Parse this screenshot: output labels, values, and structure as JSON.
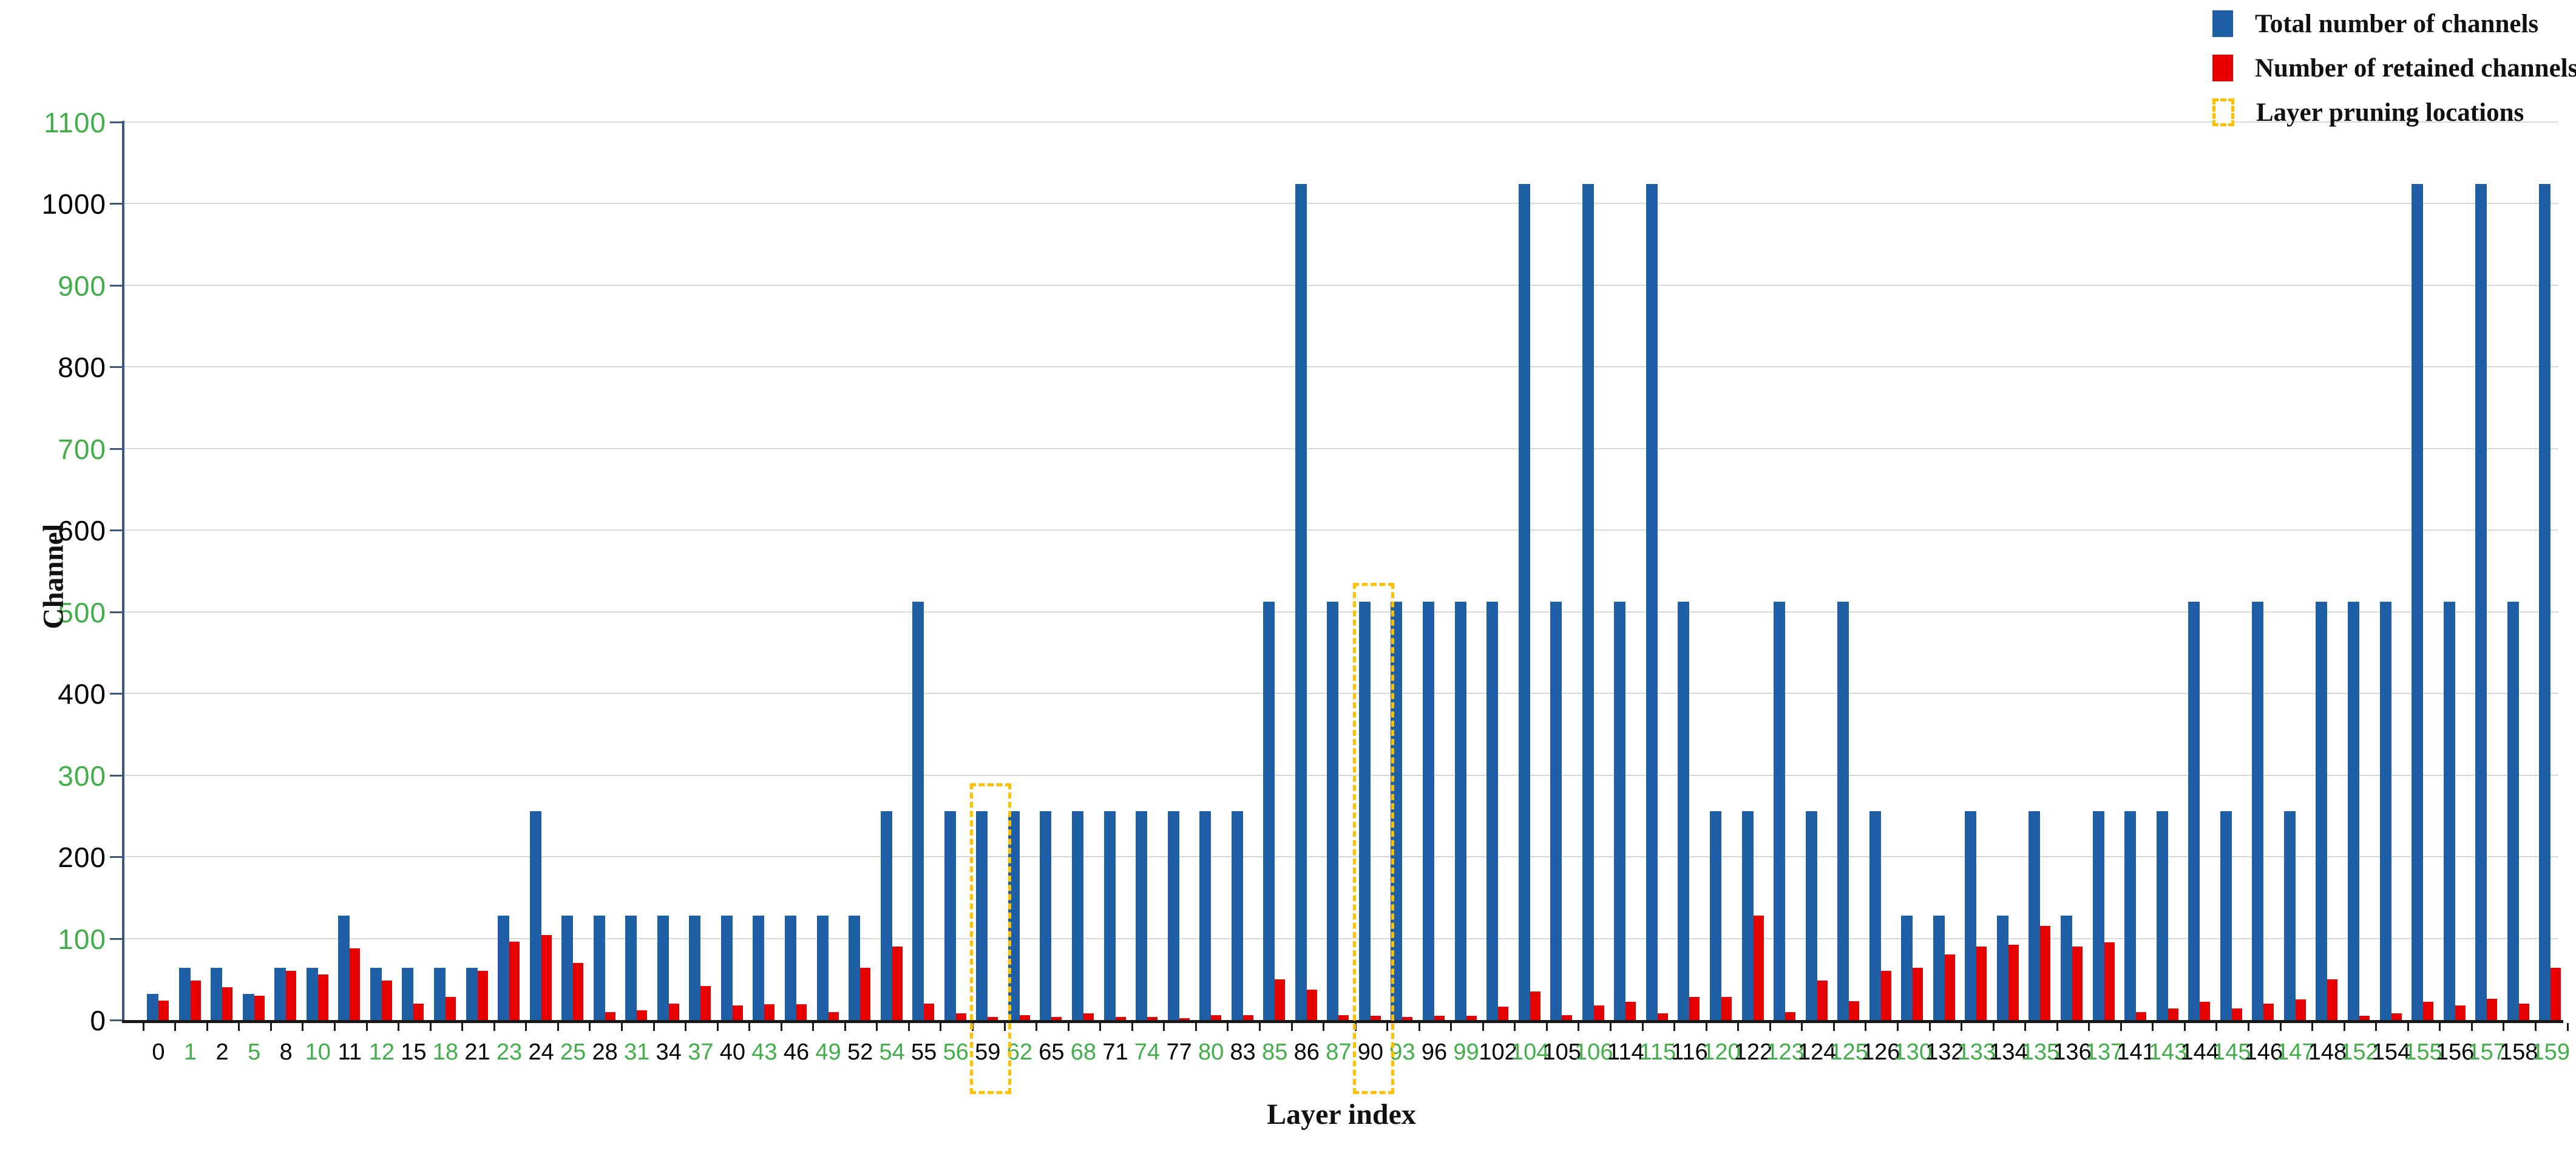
{
  "page": {
    "background": "#FFFFFF"
  },
  "legend": {
    "items": [
      {
        "label": "Total number of channels",
        "swatch": "solid",
        "color": "#1F5FA6"
      },
      {
        "label": "Number of retained channels",
        "swatch": "solid",
        "color": "#E60000"
      },
      {
        "label": "Layer pruning locations",
        "swatch": "dashed",
        "color": "#FFC000"
      }
    ]
  },
  "chart_data": {
    "type": "bar",
    "title": "",
    "xlabel": "Layer index",
    "ylabel": "Channel",
    "ylim": [
      0,
      1100
    ],
    "y_tick_step": 100,
    "grid": "horizontal",
    "legend_position": "top-right",
    "categories": [
      "0",
      "1",
      "2",
      "5",
      "8",
      "10",
      "11",
      "12",
      "15",
      "18",
      "21",
      "23",
      "24",
      "25",
      "28",
      "31",
      "34",
      "37",
      "40",
      "43",
      "46",
      "49",
      "52",
      "54",
      "55",
      "56",
      "59",
      "62",
      "65",
      "68",
      "71",
      "74",
      "77",
      "80",
      "83",
      "85",
      "86",
      "87",
      "90",
      "93",
      "96",
      "99",
      "102",
      "104",
      "105",
      "106",
      "114",
      "115",
      "116",
      "120",
      "122",
      "123",
      "124",
      "125",
      "126",
      "130",
      "132",
      "133",
      "134",
      "135",
      "136",
      "137",
      "141",
      "143",
      "144",
      "145",
      "146",
      "147",
      "148",
      "152",
      "154",
      "155",
      "156",
      "157",
      "158",
      "159"
    ],
    "series": [
      {
        "name": "Total number of channels",
        "color": "#1F5FA6",
        "values": [
          32,
          64,
          64,
          32,
          64,
          64,
          128,
          64,
          64,
          64,
          64,
          128,
          256,
          128,
          128,
          128,
          128,
          128,
          128,
          128,
          128,
          128,
          128,
          256,
          512,
          256,
          256,
          256,
          256,
          256,
          256,
          256,
          256,
          256,
          256,
          512,
          1024,
          512,
          512,
          512,
          512,
          512,
          512,
          1024,
          512,
          1024,
          512,
          1024,
          512,
          256,
          256,
          512,
          256,
          512,
          256,
          128,
          128,
          256,
          128,
          256,
          128,
          256,
          256,
          256,
          512,
          256,
          512,
          256,
          512,
          512,
          512,
          1024,
          512,
          1024,
          512,
          1024
        ]
      },
      {
        "name": "Number of retained channels",
        "color": "#E60000",
        "values": [
          24,
          48,
          40,
          30,
          60,
          56,
          88,
          48,
          20,
          28,
          60,
          96,
          104,
          70,
          10,
          12,
          20,
          42,
          18,
          19,
          19,
          10,
          64,
          90,
          20,
          8,
          4,
          6,
          4,
          8,
          4,
          4,
          2,
          6,
          6,
          50,
          37,
          6,
          5,
          4,
          5,
          5,
          16,
          35,
          6,
          18,
          22,
          8,
          28,
          28,
          128,
          10,
          48,
          23,
          60,
          64,
          80,
          90,
          92,
          115,
          90,
          95,
          10,
          14,
          22,
          14,
          20,
          25,
          50,
          5,
          8,
          22,
          18,
          26,
          20,
          64
        ]
      }
    ],
    "pruned_categories": [
      "1",
      "5",
      "10",
      "12",
      "18",
      "23",
      "25",
      "31",
      "37",
      "43",
      "49",
      "54",
      "56",
      "62",
      "68",
      "74",
      "80",
      "85",
      "87",
      "93",
      "99",
      "104",
      "106",
      "115",
      "120",
      "123",
      "125",
      "130",
      "133",
      "135",
      "137",
      "143",
      "145",
      "147",
      "152",
      "155",
      "157",
      "159"
    ],
    "pruning_boxes": [
      {
        "category": "59",
        "top_value": 290
      },
      {
        "category": "90",
        "top_value": 535
      }
    ],
    "colors": {
      "green_label": "#42AE49",
      "y_label_default": "#000000",
      "grid": "#D9D9D9",
      "y_axis": "#38587C",
      "x_axis": "#1A1A1A",
      "pruning_box": "#FFC000"
    }
  }
}
